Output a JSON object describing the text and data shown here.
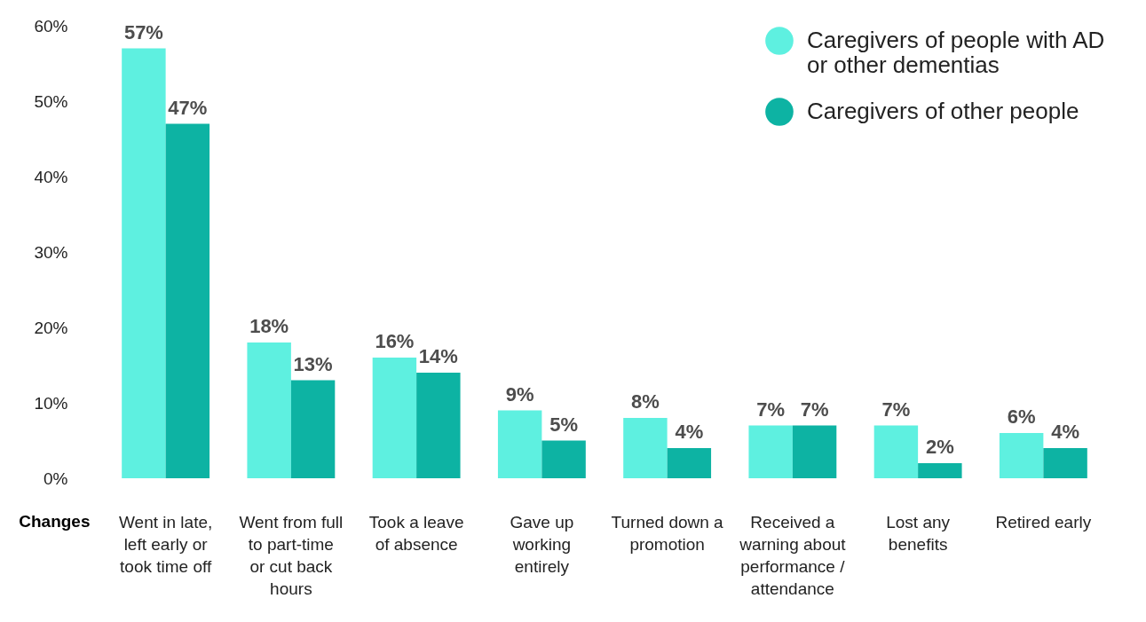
{
  "chart_data": {
    "type": "bar",
    "xlabel": "Changes",
    "categories": [
      "Went in late, left early or took time off",
      "Went from full to part-time or cut back hours",
      "Took a leave of absence",
      "Gave up working entirely",
      "Turned down a promotion",
      "Received a warning about performance / attendance",
      "Lost any benefits",
      "Retired early"
    ],
    "series": [
      {
        "name": "Caregivers of people with AD or other dementias",
        "color": "#5ef0e0",
        "values": [
          57,
          18,
          16,
          9,
          8,
          7,
          7,
          6
        ],
        "value_labels": [
          "57%",
          "18%",
          "16%",
          "9%",
          "8%",
          "7%",
          "7%",
          "6%"
        ]
      },
      {
        "name": "Caregivers of other people",
        "color": "#0db3a3",
        "values": [
          47,
          13,
          14,
          5,
          4,
          7,
          2,
          4
        ],
        "value_labels": [
          "47%",
          "13%",
          "14%",
          "5%",
          "4%",
          "7%",
          "2%",
          "4%"
        ]
      }
    ],
    "ylim": [
      0,
      60
    ],
    "yticks": [
      {
        "value": 0,
        "label": "0%"
      },
      {
        "value": 10,
        "label": "10%"
      },
      {
        "value": 20,
        "label": "20%"
      },
      {
        "value": 30,
        "label": "30%"
      },
      {
        "value": 40,
        "label": "40%"
      },
      {
        "value": 50,
        "label": "50%"
      },
      {
        "value": 60,
        "label": "60%"
      }
    ],
    "grid": false,
    "legend": "top right"
  }
}
